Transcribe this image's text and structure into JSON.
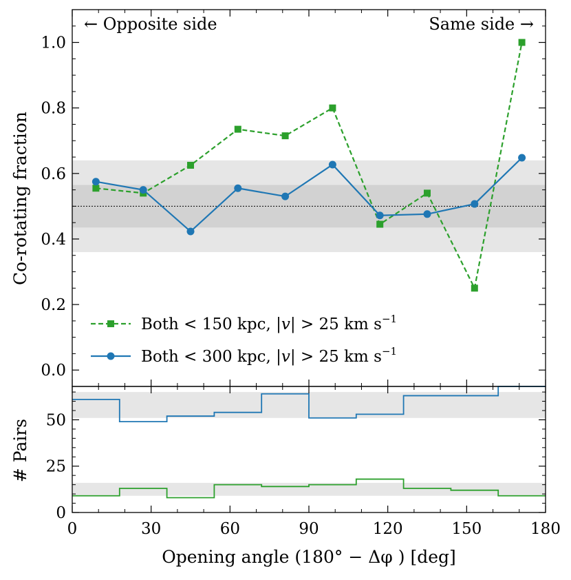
{
  "chart_data": [
    {
      "type": "line",
      "panel": "top",
      "xlabel": "Opening angle (180° − Δφ ) [deg]",
      "ylabel": "Co-rotating fraction",
      "xlim": [
        0,
        180
      ],
      "ylim": [
        -0.05,
        1.1
      ],
      "xticks": [
        0,
        30,
        60,
        90,
        120,
        150,
        180
      ],
      "yticks": [
        0.0,
        0.2,
        0.4,
        0.6,
        0.8,
        1.0
      ],
      "ytick_labels": [
        "0.0",
        "0.2",
        "0.4",
        "0.6",
        "0.8",
        "1.0"
      ],
      "annotations": {
        "left": "← Opposite side",
        "right": "Same side →"
      },
      "reference_line": 0.5,
      "bands": [
        {
          "y0": 0.36,
          "y1": 0.64,
          "color": "#e6e6e6"
        },
        {
          "y0": 0.435,
          "y1": 0.565,
          "color": "#d2d2d2"
        }
      ],
      "legend_position": "lower-left",
      "x": [
        9,
        27,
        45,
        63,
        81,
        99,
        117,
        135,
        153,
        171
      ],
      "series": [
        {
          "name": "Both < 150 kpc, |v| > 25 km s⁻¹",
          "legend": {
            "prefix": "Both ",
            "lt": "< ",
            "dist": "150 kpc, ",
            "vbar": "|v|",
            "gt": " > ",
            "speed": "25 km s",
            "sup": "−1"
          },
          "color": "#2ca02c",
          "style": "dashed",
          "marker": "square",
          "values": [
            0.555,
            0.54,
            0.625,
            0.735,
            0.715,
            0.8,
            0.445,
            0.54,
            0.25,
            1.0
          ]
        },
        {
          "name": "Both < 300 kpc, |v| > 25 km s⁻¹",
          "legend": {
            "prefix": "Both ",
            "lt": "< ",
            "dist": "300 kpc, ",
            "vbar": "|v|",
            "gt": " > ",
            "speed": "25 km s",
            "sup": "−1"
          },
          "color": "#1f77b4",
          "style": "solid",
          "marker": "circle",
          "values": [
            0.575,
            0.55,
            0.423,
            0.555,
            0.53,
            0.627,
            0.472,
            0.476,
            0.507,
            0.648
          ]
        }
      ]
    },
    {
      "type": "step",
      "panel": "bottom",
      "ylabel": "# Pairs",
      "xlim": [
        0,
        180
      ],
      "ylim": [
        0,
        68
      ],
      "yticks": [
        0,
        25,
        50
      ],
      "ytick_labels": [
        "0",
        "25",
        "50"
      ],
      "xticks": [
        0,
        30,
        60,
        90,
        120,
        150,
        180
      ],
      "xtick_labels": [
        "0",
        "30",
        "60",
        "90",
        "120",
        "150",
        "180"
      ],
      "bands": [
        {
          "y0": 51,
          "y1": 65,
          "color": "#e6e6e6"
        },
        {
          "y0": 9,
          "y1": 16,
          "color": "#e6e6e6"
        }
      ],
      "bin_edges": [
        0,
        18,
        36,
        54,
        72,
        90,
        108,
        126,
        144,
        162,
        180
      ],
      "series": [
        {
          "name": "Both < 300 kpc",
          "color": "#1f77b4",
          "values": [
            61,
            49,
            52,
            54,
            64,
            51,
            53,
            63,
            63,
            68
          ]
        },
        {
          "name": "Both < 150 kpc",
          "color": "#2ca02c",
          "values": [
            9,
            13,
            8,
            15,
            14,
            15,
            18,
            13,
            12,
            9
          ]
        }
      ]
    }
  ]
}
